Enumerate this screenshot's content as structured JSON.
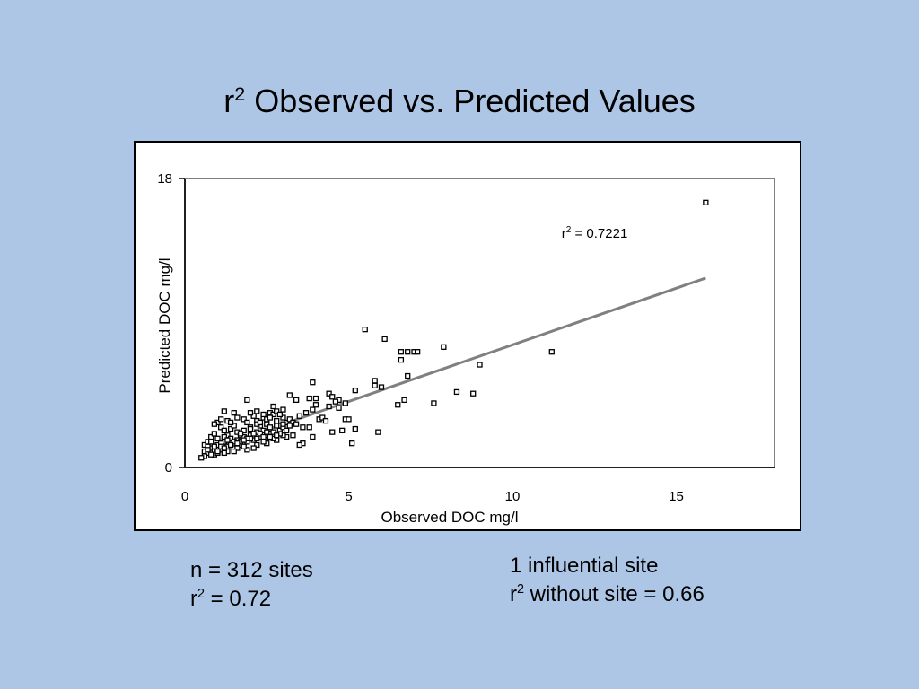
{
  "slide": {
    "title_prefix": "r",
    "title_sup": "2",
    "title_rest": " Observed vs. Predicted Values"
  },
  "notes_left": {
    "line1": "n = 312 sites",
    "line2_prefix": "r",
    "line2_sup": "2",
    "line2_rest": " = 0.72"
  },
  "notes_right": {
    "line1": "1 influential site",
    "line2_prefix": "r",
    "line2_sup": "2",
    "line2_rest": " without site = 0.66"
  },
  "chart_data": {
    "type": "scatter",
    "xlabel": "Observed DOC mg/l",
    "ylabel": "Predicted DOC mg/l",
    "xlim": [
      0,
      18
    ],
    "ylim": [
      0,
      18
    ],
    "x_ticks": [
      "0",
      "5",
      "10",
      "15"
    ],
    "x_tick_values": [
      0,
      5,
      10,
      15
    ],
    "y_ticks": [
      "0",
      "18"
    ],
    "y_tick_values": [
      0,
      18
    ],
    "annotation": {
      "prefix": "r",
      "sup": "2",
      "rest": " = 0.7221",
      "x": 11.5,
      "y": 14.3
    },
    "trendline": {
      "x": [
        0.6,
        15.9
      ],
      "y": [
        1.0,
        11.8
      ]
    },
    "colors": {
      "trendline": "#808080",
      "marker_edge": "#000000",
      "plot_border": "#808080"
    },
    "points": [
      [
        15.9,
        16.5
      ],
      [
        11.2,
        7.2
      ],
      [
        5.5,
        8.6
      ],
      [
        6.1,
        8.0
      ],
      [
        7.9,
        7.5
      ],
      [
        6.6,
        7.2
      ],
      [
        6.6,
        6.7
      ],
      [
        6.8,
        7.2
      ],
      [
        7.0,
        7.2
      ],
      [
        7.1,
        7.2
      ],
      [
        9.0,
        6.4
      ],
      [
        6.8,
        5.7
      ],
      [
        5.8,
        5.4
      ],
      [
        5.8,
        5.1
      ],
      [
        6.0,
        5.0
      ],
      [
        5.2,
        4.8
      ],
      [
        8.3,
        4.7
      ],
      [
        8.8,
        4.6
      ],
      [
        6.7,
        4.2
      ],
      [
        7.6,
        4.0
      ],
      [
        6.5,
        3.9
      ],
      [
        3.9,
        5.3
      ],
      [
        3.2,
        4.5
      ],
      [
        3.4,
        4.2
      ],
      [
        3.8,
        4.3
      ],
      [
        4.0,
        4.3
      ],
      [
        4.4,
        4.6
      ],
      [
        4.5,
        4.4
      ],
      [
        4.7,
        4.2
      ],
      [
        4.9,
        4.0
      ],
      [
        4.7,
        3.7
      ],
      [
        4.9,
        3.0
      ],
      [
        5.0,
        3.0
      ],
      [
        4.5,
        2.2
      ],
      [
        4.8,
        2.3
      ],
      [
        5.2,
        2.4
      ],
      [
        5.1,
        1.5
      ],
      [
        5.9,
        2.2
      ],
      [
        4.1,
        3.0
      ],
      [
        3.8,
        2.5
      ],
      [
        3.9,
        1.9
      ],
      [
        3.6,
        1.5
      ],
      [
        3.5,
        1.4
      ],
      [
        3.3,
        2.0
      ],
      [
        1.9,
        4.2
      ],
      [
        1.2,
        3.5
      ],
      [
        2.2,
        3.5
      ],
      [
        2.6,
        3.4
      ],
      [
        3.0,
        3.6
      ],
      [
        0.6,
        1.4
      ],
      [
        0.7,
        1.6
      ],
      [
        0.8,
        1.9
      ],
      [
        0.9,
        2.1
      ],
      [
        1.0,
        1.8
      ],
      [
        1.1,
        2.5
      ],
      [
        1.2,
        2.3
      ],
      [
        1.3,
        2.0
      ],
      [
        1.4,
        2.4
      ],
      [
        1.5,
        2.6
      ],
      [
        1.6,
        2.2
      ],
      [
        1.7,
        2.0
      ],
      [
        1.8,
        3.0
      ],
      [
        1.9,
        2.8
      ],
      [
        2.0,
        2.5
      ],
      [
        2.1,
        3.2
      ],
      [
        2.2,
        2.9
      ],
      [
        2.3,
        2.6
      ],
      [
        2.4,
        3.1
      ],
      [
        2.5,
        2.7
      ],
      [
        2.6,
        2.4
      ],
      [
        2.7,
        3.3
      ],
      [
        2.8,
        2.9
      ],
      [
        2.9,
        2.6
      ],
      [
        3.0,
        3.1
      ],
      [
        3.1,
        2.8
      ],
      [
        3.2,
        3.0
      ],
      [
        0.6,
        1.0
      ],
      [
        0.7,
        0.9
      ],
      [
        0.8,
        1.2
      ],
      [
        0.9,
        1.0
      ],
      [
        1.0,
        1.4
      ],
      [
        1.1,
        1.1
      ],
      [
        1.2,
        1.6
      ],
      [
        1.3,
        1.3
      ],
      [
        1.4,
        1.5
      ],
      [
        1.5,
        1.2
      ],
      [
        1.6,
        1.7
      ],
      [
        1.7,
        1.4
      ],
      [
        1.8,
        1.9
      ],
      [
        1.9,
        1.6
      ],
      [
        2.0,
        2.0
      ],
      [
        2.1,
        1.7
      ],
      [
        2.2,
        2.2
      ],
      [
        2.3,
        1.9
      ],
      [
        2.4,
        2.3
      ],
      [
        2.5,
        2.0
      ],
      [
        2.6,
        2.5
      ],
      [
        2.7,
        2.2
      ],
      [
        2.8,
        2.6
      ],
      [
        2.9,
        2.3
      ],
      [
        3.0,
        2.5
      ],
      [
        1.0,
        2.8
      ],
      [
        1.3,
        2.9
      ],
      [
        1.6,
        3.1
      ],
      [
        2.0,
        3.4
      ],
      [
        2.4,
        3.3
      ],
      [
        2.8,
        3.5
      ],
      [
        1.1,
        3.0
      ],
      [
        0.9,
        2.7
      ],
      [
        1.5,
        3.4
      ],
      [
        2.7,
        3.8
      ],
      [
        0.8,
        1.6
      ],
      [
        1.2,
        1.9
      ],
      [
        1.4,
        2.8
      ],
      [
        1.8,
        2.3
      ],
      [
        2.2,
        2.7
      ],
      [
        2.5,
        3.0
      ],
      [
        2.9,
        3.3
      ],
      [
        3.1,
        2.3
      ],
      [
        3.3,
        2.8
      ],
      [
        0.7,
        1.3
      ],
      [
        1.0,
        1.1
      ],
      [
        1.3,
        1.0
      ],
      [
        1.6,
        1.2
      ],
      [
        1.9,
        1.1
      ],
      [
        2.2,
        1.4
      ],
      [
        2.5,
        1.5
      ],
      [
        2.8,
        1.7
      ],
      [
        3.1,
        1.9
      ],
      [
        0.6,
        0.7
      ],
      [
        0.9,
        0.8
      ],
      [
        1.2,
        0.9
      ],
      [
        1.5,
        1.0
      ],
      [
        1.8,
        1.3
      ],
      [
        2.1,
        1.2
      ],
      [
        2.4,
        1.6
      ],
      [
        2.7,
        1.8
      ],
      [
        3.0,
        2.0
      ],
      [
        1.1,
        1.5
      ],
      [
        1.4,
        1.8
      ],
      [
        1.7,
        2.1
      ],
      [
        2.0,
        2.4
      ],
      [
        2.3,
        2.8
      ],
      [
        2.6,
        3.1
      ],
      [
        0.8,
        0.8
      ],
      [
        1.0,
        0.9
      ],
      [
        1.5,
        1.6
      ],
      [
        2.0,
        1.8
      ],
      [
        2.5,
        2.2
      ],
      [
        3.0,
        2.7
      ],
      [
        1.9,
        1.8
      ],
      [
        2.3,
        2.1
      ],
      [
        2.6,
        1.9
      ],
      [
        0.5,
        0.6
      ],
      [
        0.9,
        1.3
      ],
      [
        1.3,
        1.7
      ],
      [
        1.7,
        1.6
      ],
      [
        2.1,
        2.1
      ],
      [
        2.9,
        2.1
      ],
      [
        3.2,
        2.6
      ],
      [
        3.4,
        2.7
      ],
      [
        3.6,
        2.5
      ],
      [
        0.7,
        1.1
      ],
      [
        1.1,
        1.3
      ],
      [
        1.6,
        1.5
      ],
      [
        2.4,
        1.9
      ],
      [
        2.8,
        2.0
      ],
      [
        1.2,
        1.2
      ],
      [
        1.8,
        1.7
      ],
      [
        2.2,
        1.8
      ],
      [
        1.4,
        1.4
      ],
      [
        1.0,
        1.0
      ],
      [
        3.5,
        3.2
      ],
      [
        3.7,
        3.4
      ],
      [
        4.2,
        3.1
      ],
      [
        3.9,
        3.6
      ],
      [
        4.4,
        3.8
      ],
      [
        4.6,
        4.1
      ],
      [
        4.0,
        3.9
      ],
      [
        4.3,
        2.9
      ]
    ]
  }
}
